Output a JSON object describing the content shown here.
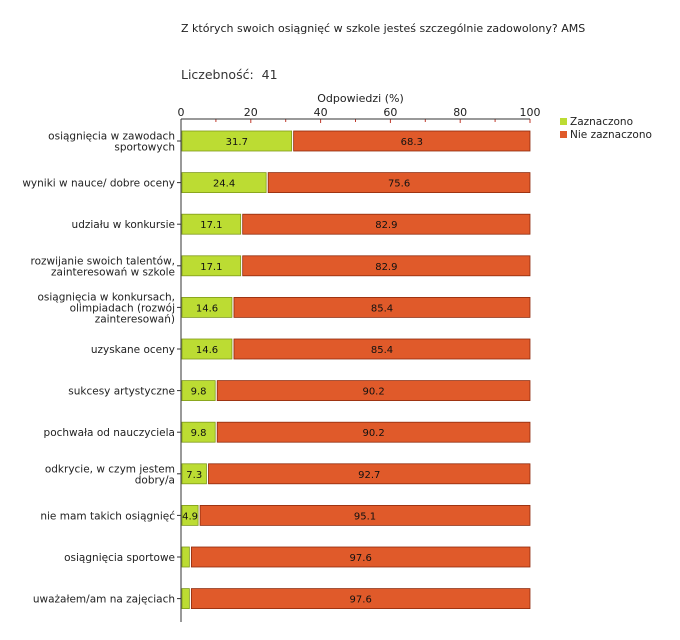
{
  "header": {
    "question": "Z których swoich osiągnięć w szkole jesteś szczególnie zadowolony? AMS",
    "count_label": "Liczebność:",
    "count_value": "41"
  },
  "chart_data": {
    "type": "bar",
    "orientation": "horizontal",
    "stacked": true,
    "xlabel": "Odpowiedzi (%)",
    "xlim": [
      0,
      100
    ],
    "xticks": [
      0,
      20,
      40,
      60,
      80,
      100
    ],
    "categories": [
      [
        "osiągnięcia w zawodach",
        "sportowych"
      ],
      [
        "wyniki w nauce/ dobre oceny"
      ],
      [
        "udziału w konkursie"
      ],
      [
        "rozwijanie swoich talentów,",
        "zainteresowań w szkole"
      ],
      [
        "osiągnięcia w konkursach,",
        "olimpiadach (rozwój",
        "zainteresowań)"
      ],
      [
        "uzyskane oceny"
      ],
      [
        "sukcesy artystyczne"
      ],
      [
        "pochwała od nauczyciela"
      ],
      [
        "odkrycie, w czym jestem",
        "dobry/a"
      ],
      [
        "nie mam takich osiągnięć"
      ],
      [
        "osiągnięcia sportowe"
      ],
      [
        "uważałem/am na zajęciach"
      ]
    ],
    "series": [
      {
        "name": "Zaznaczono",
        "color": "#bcdc33",
        "values": [
          31.7,
          24.4,
          17.1,
          17.1,
          14.6,
          14.6,
          9.8,
          9.8,
          7.3,
          4.9,
          2.4,
          2.4
        ],
        "labels": [
          "31.7",
          "24.4",
          "17.1",
          "17.1",
          "14.6",
          "14.6",
          "9.8",
          "9.8",
          "7.3",
          "4.9",
          "",
          ""
        ]
      },
      {
        "name": "Nie zaznaczono",
        "color": "#e05a2a",
        "values": [
          68.3,
          75.6,
          82.9,
          82.9,
          85.4,
          85.4,
          90.2,
          90.2,
          92.7,
          95.1,
          97.6,
          97.6
        ],
        "labels": [
          "68.3",
          "75.6",
          "82.9",
          "82.9",
          "85.4",
          "85.4",
          "90.2",
          "90.2",
          "92.7",
          "95.1",
          "97.6",
          "97.6"
        ]
      }
    ],
    "legend_position": "top-right"
  }
}
